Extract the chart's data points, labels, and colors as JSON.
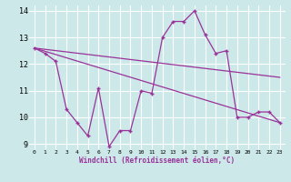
{
  "xlabel": "Windchill (Refroidissement éolien,°C)",
  "bg_color": "#cce8e8",
  "grid_color": "#ffffff",
  "line_color": "#993399",
  "xlim": [
    -0.5,
    23.5
  ],
  "ylim": [
    8.8,
    14.2
  ],
  "yticks": [
    9,
    10,
    11,
    12,
    13,
    14
  ],
  "xticks": [
    0,
    1,
    2,
    3,
    4,
    5,
    6,
    7,
    8,
    9,
    10,
    11,
    12,
    13,
    14,
    15,
    16,
    17,
    18,
    19,
    20,
    21,
    22,
    23
  ],
  "line1_x": [
    0,
    1,
    2,
    3,
    4,
    5,
    6,
    7,
    8,
    9,
    10,
    11,
    12,
    13,
    14,
    15,
    16,
    17,
    18,
    19,
    20,
    21,
    22,
    23
  ],
  "line1_y": [
    12.6,
    12.4,
    12.1,
    10.3,
    9.8,
    9.3,
    11.1,
    8.9,
    9.5,
    9.5,
    11.0,
    10.9,
    13.0,
    13.6,
    13.6,
    14.0,
    13.1,
    12.4,
    12.5,
    10.0,
    10.0,
    10.2,
    10.2,
    9.8
  ],
  "line2_x": [
    0,
    23
  ],
  "line2_y": [
    12.6,
    11.5
  ],
  "line3_x": [
    0,
    23
  ],
  "line3_y": [
    12.6,
    9.8
  ]
}
